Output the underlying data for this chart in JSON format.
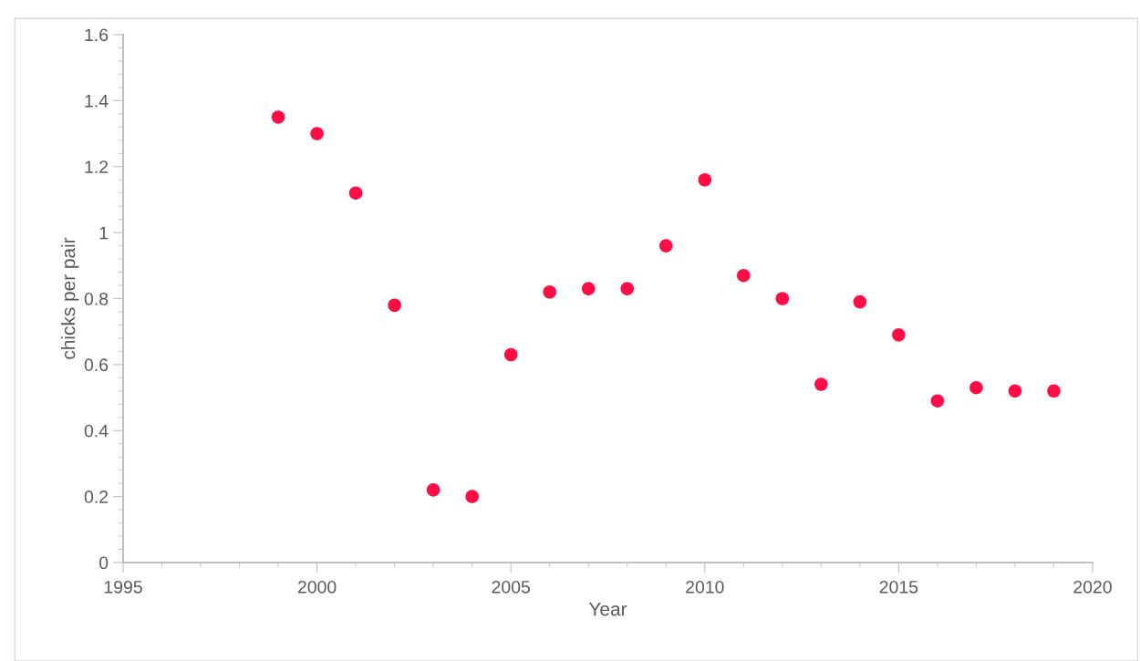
{
  "chart_data": {
    "type": "scatter",
    "xlabel": "Year",
    "ylabel": "chicks per pair",
    "x": [
      1999,
      2000,
      2001,
      2002,
      2003,
      2004,
      2005,
      2006,
      2007,
      2008,
      2009,
      2010,
      2011,
      2012,
      2013,
      2014,
      2015,
      2016,
      2017,
      2018,
      2019
    ],
    "series": [
      {
        "color": "#ff0d45",
        "values": [
          1.35,
          1.3,
          1.12,
          0.78,
          0.22,
          0.2,
          0.63,
          0.82,
          0.83,
          0.83,
          0.96,
          1.16,
          0.87,
          0.8,
          0.54,
          0.79,
          0.69,
          0.49,
          0.53,
          0.52,
          0.52
        ]
      }
    ],
    "xlim": [
      1995,
      2020
    ],
    "xticks": [
      1995,
      2000,
      2005,
      2010,
      2015,
      2020
    ],
    "ylim": [
      0,
      1.6
    ],
    "yticks": [
      0,
      0.2,
      0.4,
      0.6,
      0.8,
      1,
      1.2,
      1.4,
      1.6
    ],
    "grid": false,
    "marker": "circle"
  }
}
